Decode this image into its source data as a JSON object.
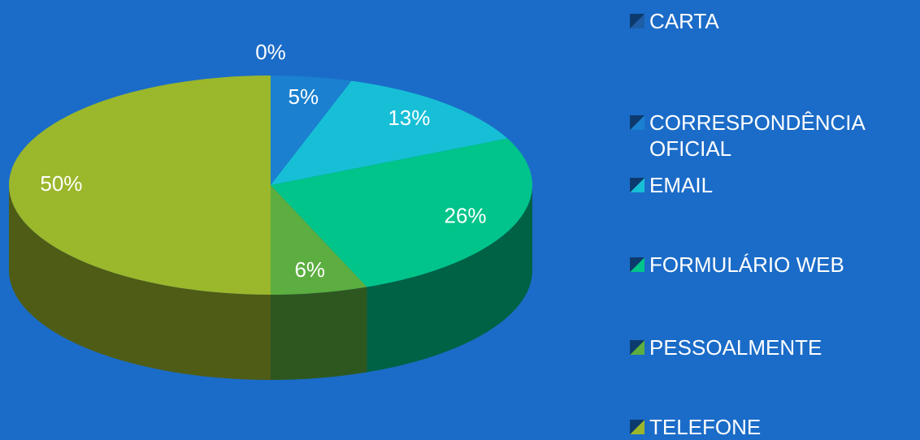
{
  "chart_data": {
    "type": "pie",
    "categories": [
      "CARTA",
      "CORRESPONDÊNCIA OFICIAL",
      "EMAIL",
      "FORMULÁRIO WEB",
      "PESSOALMENTE",
      "TELEFONE"
    ],
    "values": [
      0,
      5,
      13,
      26,
      6,
      50
    ],
    "value_labels": [
      "0%",
      "5%",
      "13%",
      "26%",
      "6%",
      "50%"
    ],
    "colors": [
      "#1e5ea6",
      "#1a80cf",
      "#17bfd6",
      "#00c48a",
      "#5bae3f",
      "#9bb72b"
    ]
  }
}
